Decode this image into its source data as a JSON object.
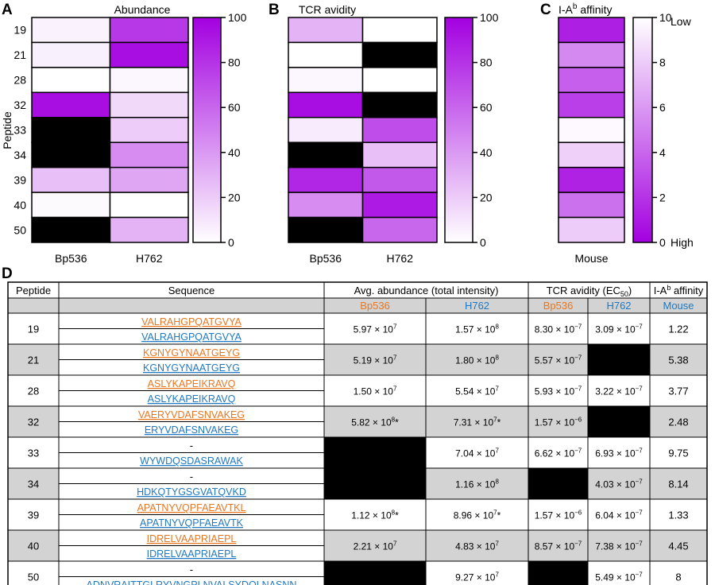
{
  "panels": {
    "a": {
      "label": "A",
      "title": "Abundance",
      "ylabel": "Peptide",
      "columns": [
        "Bp536",
        "H762"
      ],
      "colorbar_ticks": [
        "100",
        "80",
        "60",
        "40",
        "20",
        "0"
      ]
    },
    "b": {
      "label": "B",
      "title": "TCR avidity",
      "columns": [
        "Bp536",
        "H762"
      ],
      "colorbar_ticks": [
        "100",
        "80",
        "60",
        "40",
        "20",
        "0"
      ]
    },
    "c": {
      "label": "C",
      "title_prefix": "I-A",
      "title_sup": "b",
      "title_suffix": " affinity",
      "columns": [
        "Mouse"
      ],
      "colorbar_ticks": [
        "10",
        "8",
        "6",
        "4",
        "2",
        "0"
      ],
      "colorbar_top_label": "Low",
      "colorbar_bottom_label": "High"
    },
    "d": {
      "label": "D"
    }
  },
  "chart_data": [
    {
      "type": "heatmap",
      "title": "Abundance",
      "ylabel": "Peptide",
      "rows": [
        "19",
        "21",
        "28",
        "32",
        "33",
        "34",
        "39",
        "40",
        "50"
      ],
      "columns": [
        "Bp536",
        "H762"
      ],
      "values": [
        [
          5,
          78
        ],
        [
          6,
          95
        ],
        [
          0,
          3
        ],
        [
          95,
          15
        ],
        [
          null,
          20
        ],
        [
          null,
          45
        ],
        [
          25,
          35
        ],
        [
          2,
          0
        ],
        [
          null,
          30
        ]
      ],
      "range": [
        0,
        100
      ],
      "missing_color": "#000000",
      "low_color": "#ffffff",
      "high_color": "#a300e0"
    },
    {
      "type": "heatmap",
      "title": "TCR avidity",
      "rows": [
        "19",
        "21",
        "28",
        "32",
        "33",
        "34",
        "39",
        "40",
        "50"
      ],
      "columns": [
        "Bp536",
        "H762"
      ],
      "values": [
        [
          30,
          0
        ],
        [
          0,
          null
        ],
        [
          3,
          0
        ],
        [
          95,
          null
        ],
        [
          8,
          70
        ],
        [
          null,
          25
        ],
        [
          85,
          65
        ],
        [
          45,
          90
        ],
        [
          null,
          60
        ]
      ],
      "range": [
        0,
        100
      ],
      "missing_color": "#000000",
      "low_color": "#ffffff",
      "high_color": "#a300e0"
    },
    {
      "type": "heatmap",
      "title": "I-Ab affinity",
      "rows": [
        "19",
        "21",
        "28",
        "32",
        "33",
        "34",
        "39",
        "40",
        "50"
      ],
      "columns": [
        "Mouse"
      ],
      "values": [
        [
          1.22
        ],
        [
          5.38
        ],
        [
          3.77
        ],
        [
          2.48
        ],
        [
          9.75
        ],
        [
          8.14
        ],
        [
          1.33
        ],
        [
          4.45
        ],
        [
          8
        ]
      ],
      "range": [
        0,
        10
      ],
      "low_color": "#a300e0",
      "high_color": "#ffffff"
    },
    {
      "type": "table",
      "headers": {
        "peptide": "Peptide",
        "sequence": "Sequence",
        "abundance": "Avg. abundance (total intensity)",
        "avidity_prefix": "TCR avidity (EC",
        "avidity_sub": "50",
        "avidity_suffix": ")",
        "affinity_prefix": "I-A",
        "affinity_sup": "b",
        "affinity_suffix": " affinity"
      },
      "subheaders": [
        "Bp536",
        "H762",
        "Bp536",
        "H762",
        "Mouse"
      ],
      "colors": {
        "bp536": "#e87722",
        "h762": "#1f78c1",
        "shade": "#d3d3d3"
      },
      "rows": [
        {
          "peptide": "19",
          "seq_bp": "VALRAHGPQATGVYA",
          "seq_h": "VALRAHGPQATGVYA",
          "ab_bp": "5.97 × 10",
          "ab_bp_exp": "7",
          "ab_h": "1.57 × 10",
          "ab_h_exp": "8",
          "av_bp": "8.30 × 10",
          "av_bp_exp": "−7",
          "av_h": "3.09 × 10",
          "av_h_exp": "−7",
          "affinity": "1.22"
        },
        {
          "peptide": "21",
          "seq_bp": "KGNYGYNAATGEYG",
          "seq_h": "KGNYGYNAATGEYG",
          "ab_bp": "5.19 × 10",
          "ab_bp_exp": "7",
          "ab_h": "1.80 × 10",
          "ab_h_exp": "8",
          "av_bp": "5.57 × 10",
          "av_bp_exp": "−7",
          "av_h": null,
          "affinity": "5.38"
        },
        {
          "peptide": "28",
          "seq_bp": "ASLYKAPEIKRAVQ",
          "seq_h": "ASLYKAPEIKRAVQ",
          "ab_bp": "1.50 × 10",
          "ab_bp_exp": "7",
          "ab_h": "5.54 × 10",
          "ab_h_exp": "7",
          "av_bp": "5.93 × 10",
          "av_bp_exp": "−7",
          "av_h": "3.22 × 10",
          "av_h_exp": "−7",
          "affinity": "3.77"
        },
        {
          "peptide": "32",
          "seq_bp": "VAERYVDAFSNVAKEG",
          "seq_h": "ERYVDAFSNVAKEG",
          "ab_bp": "5.82 × 10",
          "ab_bp_exp": "8",
          "ab_bp_star": "*",
          "ab_h": "7.31 × 10",
          "ab_h_exp": "7",
          "ab_h_star": "*",
          "av_bp": "1.57 × 10",
          "av_bp_exp": "−6",
          "av_h": null,
          "affinity": "2.48"
        },
        {
          "peptide": "33",
          "seq_bp": "-",
          "seq_h": "WYWDQSDASRAWAK",
          "ab_bp": null,
          "ab_h": "7.04 × 10",
          "ab_h_exp": "7",
          "av_bp": "6.62 × 10",
          "av_bp_exp": "−7",
          "av_h": "6.93 × 10",
          "av_h_exp": "−7",
          "affinity": "9.75"
        },
        {
          "peptide": "34",
          "seq_bp": "-",
          "seq_h": "HDKQTYGSGVATQVKD",
          "ab_bp": null,
          "ab_h": "1.16 × 10",
          "ab_h_exp": "8",
          "av_bp": null,
          "av_h": "4.03 × 10",
          "av_h_exp": "−7",
          "affinity": "8.14"
        },
        {
          "peptide": "39",
          "seq_bp": "APATNYVQPFAEAVTKL",
          "seq_h": "APATNYVQPFAEAVTK",
          "ab_bp": "1.12 × 10",
          "ab_bp_exp": "8",
          "ab_bp_star": "*",
          "ab_h": "8.96 × 10",
          "ab_h_exp": "7",
          "ab_h_star": "*",
          "av_bp": "1.57 × 10",
          "av_bp_exp": "−6",
          "av_h": "6.04 × 10",
          "av_h_exp": "−7",
          "affinity": "1.33"
        },
        {
          "peptide": "40",
          "seq_bp": "IDRELVAAPRIAEPL",
          "seq_h": "IDRELVAAPRIAEPL",
          "ab_bp": "2.21 × 10",
          "ab_bp_exp": "7",
          "ab_h": "4.83 × 10",
          "ab_h_exp": "7",
          "av_bp": "8.57 × 10",
          "av_bp_exp": "−7",
          "av_h": "7.38 × 10",
          "av_h_exp": "−7",
          "affinity": "4.45"
        },
        {
          "peptide": "50",
          "seq_bp": "-",
          "seq_h": "ADNVRAITTGLRYVNGPLNVALSYDQLNASNN",
          "ab_bp": null,
          "ab_h": "9.27 × 10",
          "ab_h_exp": "7",
          "av_bp": null,
          "av_h": "5.49 × 10",
          "av_h_exp": "−7",
          "affinity": "8"
        }
      ]
    }
  ]
}
